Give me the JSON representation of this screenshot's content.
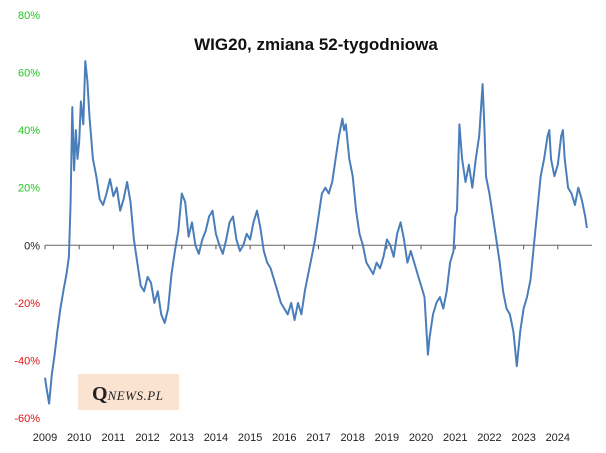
{
  "chart_data": {
    "type": "line",
    "title": "WIG20, zmiana 52-tygodniowa",
    "xlabel": "",
    "ylabel": "",
    "x_tick_labels": [
      "2009",
      "2010",
      "2011",
      "2012",
      "2013",
      "2014",
      "2015",
      "2016",
      "2017",
      "2018",
      "2019",
      "2020",
      "2021",
      "2022",
      "2023",
      "2024"
    ],
    "xlim": [
      2009.0,
      2025.0
    ],
    "ylim": [
      -0.6,
      0.8
    ],
    "y_ticks": [
      {
        "value": 0.8,
        "label": "80%"
      },
      {
        "value": 0.6,
        "label": "60%"
      },
      {
        "value": 0.4,
        "label": "40%"
      },
      {
        "value": 0.2,
        "label": "20%"
      },
      {
        "value": 0.0,
        "label": "0%"
      },
      {
        "value": -0.2,
        "label": "-20%"
      },
      {
        "value": -0.4,
        "label": "-40%"
      },
      {
        "value": -0.6,
        "label": "-60%"
      }
    ],
    "grid": false,
    "series": [
      {
        "name": "WIG20, zmiana 52-tygodniowa",
        "color": "#4a7ebb",
        "points": [
          [
            2009.0,
            -0.46
          ],
          [
            2009.05,
            -0.5
          ],
          [
            2009.12,
            -0.55
          ],
          [
            2009.2,
            -0.45
          ],
          [
            2009.28,
            -0.38
          ],
          [
            2009.36,
            -0.3
          ],
          [
            2009.45,
            -0.22
          ],
          [
            2009.55,
            -0.15
          ],
          [
            2009.63,
            -0.1
          ],
          [
            2009.7,
            -0.04
          ],
          [
            2009.75,
            0.15
          ],
          [
            2009.8,
            0.48
          ],
          [
            2009.85,
            0.26
          ],
          [
            2009.9,
            0.4
          ],
          [
            2009.95,
            0.3
          ],
          [
            2010.0,
            0.36
          ],
          [
            2010.05,
            0.5
          ],
          [
            2010.12,
            0.42
          ],
          [
            2010.18,
            0.64
          ],
          [
            2010.24,
            0.57
          ],
          [
            2010.3,
            0.45
          ],
          [
            2010.4,
            0.3
          ],
          [
            2010.5,
            0.24
          ],
          [
            2010.6,
            0.16
          ],
          [
            2010.7,
            0.14
          ],
          [
            2010.8,
            0.18
          ],
          [
            2010.9,
            0.23
          ],
          [
            2011.0,
            0.17
          ],
          [
            2011.1,
            0.2
          ],
          [
            2011.2,
            0.12
          ],
          [
            2011.3,
            0.16
          ],
          [
            2011.4,
            0.22
          ],
          [
            2011.5,
            0.15
          ],
          [
            2011.6,
            0.02
          ],
          [
            2011.7,
            -0.06
          ],
          [
            2011.8,
            -0.14
          ],
          [
            2011.9,
            -0.16
          ],
          [
            2012.0,
            -0.11
          ],
          [
            2012.1,
            -0.13
          ],
          [
            2012.2,
            -0.2
          ],
          [
            2012.3,
            -0.16
          ],
          [
            2012.4,
            -0.24
          ],
          [
            2012.5,
            -0.27
          ],
          [
            2012.6,
            -0.22
          ],
          [
            2012.7,
            -0.1
          ],
          [
            2012.8,
            -0.02
          ],
          [
            2012.9,
            0.05
          ],
          [
            2013.0,
            0.18
          ],
          [
            2013.1,
            0.15
          ],
          [
            2013.2,
            0.03
          ],
          [
            2013.3,
            0.08
          ],
          [
            2013.4,
            0.0
          ],
          [
            2013.5,
            -0.03
          ],
          [
            2013.6,
            0.02
          ],
          [
            2013.7,
            0.05
          ],
          [
            2013.8,
            0.1
          ],
          [
            2013.9,
            0.12
          ],
          [
            2014.0,
            0.04
          ],
          [
            2014.1,
            0.0
          ],
          [
            2014.2,
            -0.03
          ],
          [
            2014.3,
            0.02
          ],
          [
            2014.4,
            0.08
          ],
          [
            2014.5,
            0.1
          ],
          [
            2014.6,
            0.02
          ],
          [
            2014.7,
            -0.02
          ],
          [
            2014.8,
            0.0
          ],
          [
            2014.9,
            0.04
          ],
          [
            2015.0,
            0.02
          ],
          [
            2015.1,
            0.08
          ],
          [
            2015.2,
            0.12
          ],
          [
            2015.3,
            0.06
          ],
          [
            2015.4,
            -0.02
          ],
          [
            2015.5,
            -0.06
          ],
          [
            2015.6,
            -0.08
          ],
          [
            2015.7,
            -0.12
          ],
          [
            2015.8,
            -0.16
          ],
          [
            2015.9,
            -0.2
          ],
          [
            2016.0,
            -0.22
          ],
          [
            2016.1,
            -0.24
          ],
          [
            2016.2,
            -0.2
          ],
          [
            2016.3,
            -0.26
          ],
          [
            2016.4,
            -0.2
          ],
          [
            2016.5,
            -0.24
          ],
          [
            2016.6,
            -0.16
          ],
          [
            2016.7,
            -0.1
          ],
          [
            2016.8,
            -0.04
          ],
          [
            2016.9,
            0.02
          ],
          [
            2017.0,
            0.1
          ],
          [
            2017.1,
            0.18
          ],
          [
            2017.2,
            0.2
          ],
          [
            2017.3,
            0.18
          ],
          [
            2017.4,
            0.22
          ],
          [
            2017.5,
            0.3
          ],
          [
            2017.6,
            0.38
          ],
          [
            2017.7,
            0.44
          ],
          [
            2017.75,
            0.4
          ],
          [
            2017.8,
            0.42
          ],
          [
            2017.9,
            0.3
          ],
          [
            2018.0,
            0.24
          ],
          [
            2018.1,
            0.12
          ],
          [
            2018.2,
            0.04
          ],
          [
            2018.3,
            0.0
          ],
          [
            2018.4,
            -0.06
          ],
          [
            2018.5,
            -0.08
          ],
          [
            2018.6,
            -0.1
          ],
          [
            2018.7,
            -0.06
          ],
          [
            2018.8,
            -0.08
          ],
          [
            2018.9,
            -0.04
          ],
          [
            2019.0,
            0.02
          ],
          [
            2019.1,
            0.0
          ],
          [
            2019.2,
            -0.04
          ],
          [
            2019.3,
            0.04
          ],
          [
            2019.4,
            0.08
          ],
          [
            2019.5,
            0.02
          ],
          [
            2019.6,
            -0.06
          ],
          [
            2019.7,
            -0.02
          ],
          [
            2019.8,
            -0.06
          ],
          [
            2019.9,
            -0.1
          ],
          [
            2020.0,
            -0.14
          ],
          [
            2020.1,
            -0.18
          ],
          [
            2020.15,
            -0.28
          ],
          [
            2020.2,
            -0.38
          ],
          [
            2020.25,
            -0.32
          ],
          [
            2020.35,
            -0.24
          ],
          [
            2020.45,
            -0.2
          ],
          [
            2020.55,
            -0.18
          ],
          [
            2020.65,
            -0.22
          ],
          [
            2020.75,
            -0.16
          ],
          [
            2020.85,
            -0.06
          ],
          [
            2020.95,
            -0.02
          ],
          [
            2021.0,
            0.1
          ],
          [
            2021.05,
            0.12
          ],
          [
            2021.12,
            0.42
          ],
          [
            2021.2,
            0.3
          ],
          [
            2021.3,
            0.22
          ],
          [
            2021.4,
            0.28
          ],
          [
            2021.5,
            0.2
          ],
          [
            2021.6,
            0.3
          ],
          [
            2021.7,
            0.38
          ],
          [
            2021.8,
            0.56
          ],
          [
            2021.85,
            0.42
          ],
          [
            2021.9,
            0.24
          ],
          [
            2022.0,
            0.18
          ],
          [
            2022.1,
            0.1
          ],
          [
            2022.2,
            0.02
          ],
          [
            2022.3,
            -0.06
          ],
          [
            2022.4,
            -0.16
          ],
          [
            2022.5,
            -0.22
          ],
          [
            2022.6,
            -0.24
          ],
          [
            2022.7,
            -0.3
          ],
          [
            2022.75,
            -0.36
          ],
          [
            2022.8,
            -0.42
          ],
          [
            2022.9,
            -0.3
          ],
          [
            2023.0,
            -0.22
          ],
          [
            2023.1,
            -0.18
          ],
          [
            2023.2,
            -0.12
          ],
          [
            2023.3,
            0.0
          ],
          [
            2023.4,
            0.12
          ],
          [
            2023.5,
            0.24
          ],
          [
            2023.6,
            0.3
          ],
          [
            2023.7,
            0.38
          ],
          [
            2023.75,
            0.4
          ],
          [
            2023.8,
            0.3
          ],
          [
            2023.9,
            0.24
          ],
          [
            2024.0,
            0.28
          ],
          [
            2024.1,
            0.38
          ],
          [
            2024.15,
            0.4
          ],
          [
            2024.2,
            0.3
          ],
          [
            2024.3,
            0.2
          ],
          [
            2024.4,
            0.18
          ],
          [
            2024.5,
            0.14
          ],
          [
            2024.6,
            0.2
          ],
          [
            2024.7,
            0.16
          ],
          [
            2024.8,
            0.1
          ],
          [
            2024.85,
            0.06
          ]
        ]
      }
    ]
  },
  "colors": {
    "positive_tick": "#1ec71e",
    "zero_tick": "#222222",
    "negative_tick": "#e01010",
    "axis": "#555555"
  },
  "logo": {
    "letter": "Q",
    "rest": "NEWS.PL"
  }
}
